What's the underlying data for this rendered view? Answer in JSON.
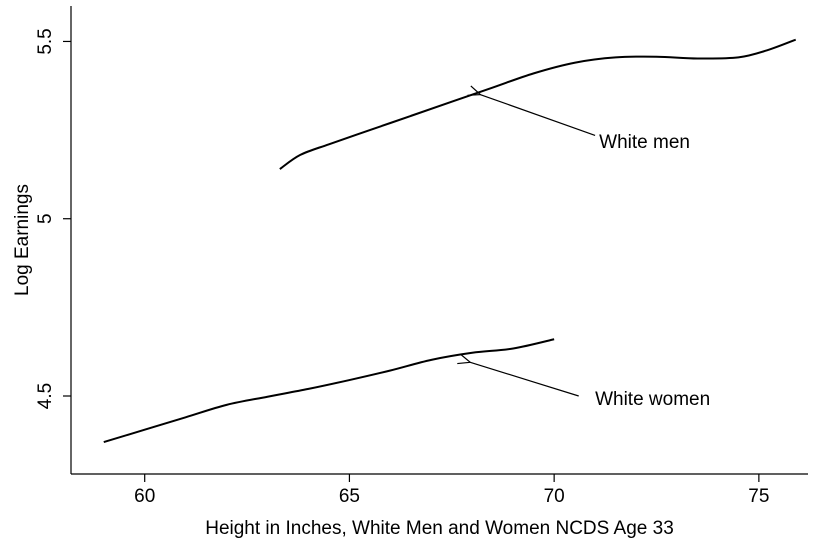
{
  "chart_data": {
    "type": "line",
    "title": "",
    "xlabel": "Height in Inches, White Men and Women NCDS Age 33",
    "ylabel": "Log Earnings",
    "xlim": [
      58.2,
      76.2
    ],
    "ylim": [
      4.28,
      5.6
    ],
    "xticks": [
      60,
      65,
      70,
      75
    ],
    "xtick_labels": [
      "60",
      "65",
      "70",
      "75"
    ],
    "yticks": [
      4.5,
      5,
      5.5
    ],
    "ytick_labels": [
      "4.5",
      "5",
      "5.5"
    ],
    "grid": false,
    "legend": "none",
    "series": [
      {
        "x": [
          63.3,
          63.8,
          64.5,
          65.5,
          66.5,
          67.5,
          68.5,
          69.5,
          70.5,
          71.5,
          72.5,
          73.5,
          74.5,
          75.2,
          75.9
        ],
        "y": [
          5.14,
          5.18,
          5.21,
          5.25,
          5.29,
          5.33,
          5.37,
          5.41,
          5.44,
          5.455,
          5.457,
          5.452,
          5.455,
          5.475,
          5.505
        ]
      },
      {
        "x": [
          59.0,
          60.0,
          61.0,
          62.0,
          63.0,
          64.0,
          65.0,
          66.0,
          67.0,
          68.0,
          69.0,
          70.0
        ],
        "y": [
          4.37,
          4.405,
          4.44,
          4.475,
          4.498,
          4.52,
          4.545,
          4.572,
          4.602,
          4.622,
          4.634,
          4.66
        ]
      }
    ],
    "annotations": [
      {
        "text": "White men",
        "text_x": 71.1,
        "text_y": 5.2,
        "arrow_from": [
          71.0,
          5.235
        ],
        "arrow_to": [
          68.2,
          5.35
        ]
      },
      {
        "text": "White women",
        "text_x": 71.0,
        "text_y": 4.475,
        "arrow_from": [
          70.6,
          4.5
        ],
        "arrow_to": [
          67.95,
          4.595
        ]
      }
    ]
  }
}
